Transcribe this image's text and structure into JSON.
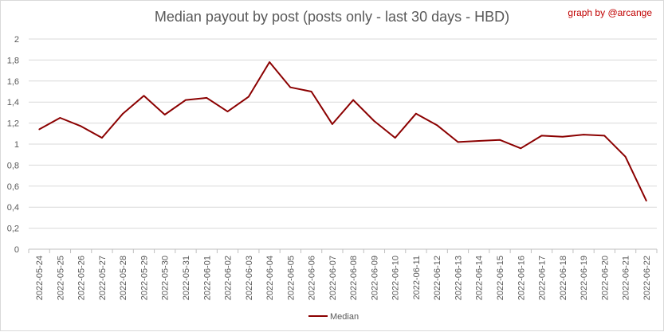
{
  "header": {
    "title": "Median payout by post (posts only - last 30 days - HBD)",
    "credit": "graph by @arcange"
  },
  "chart_data": {
    "type": "line",
    "categories": [
      "2022-05-24",
      "2022-05-25",
      "2022-05-26",
      "2022-05-27",
      "2022-05-28",
      "2022-05-29",
      "2022-05-30",
      "2022-05-31",
      "2022-06-01",
      "2022-06-02",
      "2022-06-03",
      "2022-06-04",
      "2022-06-05",
      "2022-06-06",
      "2022-06-07",
      "2022-06-08",
      "2022-06-09",
      "2022-06-10",
      "2022-06-11",
      "2022-06-12",
      "2022-06-13",
      "2022-06-14",
      "2022-06-15",
      "2022-06-16",
      "2022-06-17",
      "2022-06-18",
      "2022-06-19",
      "2022-06-20",
      "2022-06-21",
      "2022-06-22"
    ],
    "series": [
      {
        "name": "Median",
        "color": "#8b0000",
        "values": [
          1.14,
          1.25,
          1.17,
          1.06,
          1.29,
          1.46,
          1.28,
          1.42,
          1.44,
          1.31,
          1.45,
          1.78,
          1.54,
          1.5,
          1.19,
          1.42,
          1.22,
          1.06,
          1.29,
          1.18,
          1.02,
          1.03,
          1.04,
          0.96,
          1.08,
          1.07,
          1.09,
          1.08,
          0.88,
          0.46
        ]
      }
    ],
    "yticks": [
      "0",
      "0,2",
      "0,4",
      "0,6",
      "0,8",
      "1",
      "1,2",
      "1,4",
      "1,6",
      "1,8",
      "2"
    ],
    "ylim": [
      0,
      2
    ],
    "grid": true,
    "legend": "bottom"
  }
}
